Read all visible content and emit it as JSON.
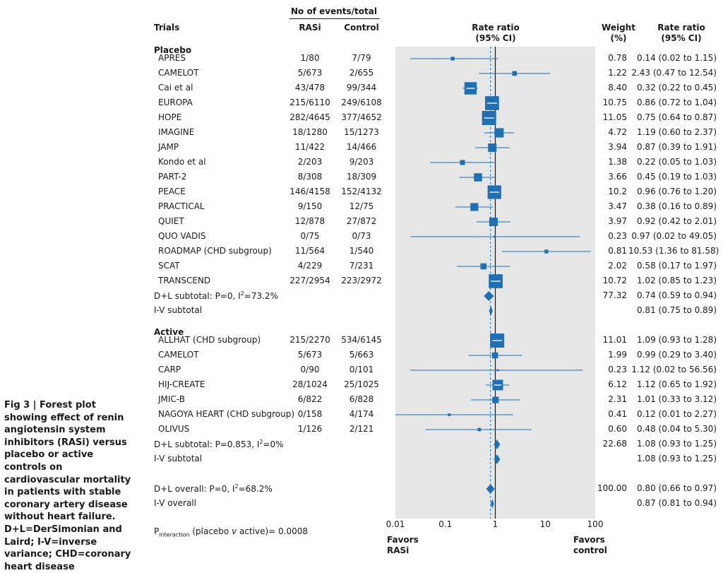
{
  "caption": "Fig 3 | Forest plot showing effect of renin angiotensin system inhibitors (RASi) versus placebo or active controls on cardiovascular mortality in patients with stable coronary artery disease without heart failure. D+L=DerSimonian and Laird; I-V=inverse variance; CHD=coronary heart disease",
  "headers": {
    "events_group": "No of events/total",
    "trials": "Trials",
    "rasi": "RASi",
    "control": "Control",
    "rate_ratio_plot_1": "Rate ratio",
    "rate_ratio_plot_2": "(95% CI)",
    "weight_1": "Weight",
    "weight_2": "(%)",
    "rate_ratio_col_1": "Rate ratio",
    "rate_ratio_col_2": "(95% CI)"
  },
  "axis_labels": {
    "favors_left_1": "Favors",
    "favors_left_2": "RASi",
    "favors_right_1": "Favors",
    "favors_right_2": "control"
  },
  "p_interaction": {
    "prefix": "P",
    "subscript": "interaction",
    "paren": "(placebo ",
    "v": "v",
    "rest": " active)= 0.0008"
  },
  "chart_data": {
    "type": "forest",
    "title": "Rate ratio (95% CI)",
    "xscale": "log",
    "xlim": [
      0.01,
      100
    ],
    "xticks": [
      0.01,
      0.1,
      1,
      10,
      100
    ],
    "xtick_labels": [
      "0.01",
      "0.1",
      "1",
      "10",
      "100"
    ],
    "reference_line": 1,
    "overall_dashed_line": 0.8,
    "accent_color": "#1f6fb2",
    "panel_color": "#e6e6e6",
    "groups": [
      {
        "name": "Placebo",
        "trials": [
          {
            "name": "APRES",
            "rasi": "1/80",
            "control": "7/79",
            "weight": "0.78",
            "ci_text": "0.14 (0.02 to 1.15)",
            "rr": 0.14,
            "lo": 0.02,
            "hi": 1.15,
            "w": 0.78
          },
          {
            "name": "CAMELOT",
            "rasi": "5/673",
            "control": "2/655",
            "weight": "1.22",
            "ci_text": "2.43 (0.47 to 12.54)",
            "rr": 2.43,
            "lo": 0.47,
            "hi": 12.54,
            "w": 1.22
          },
          {
            "name": "Cai et al",
            "rasi": "43/478",
            "control": "99/344",
            "weight": "8.40",
            "ci_text": "0.32 (0.22 to 0.45)",
            "rr": 0.32,
            "lo": 0.22,
            "hi": 0.45,
            "w": 8.4
          },
          {
            "name": "EUROPA",
            "rasi": "215/6110",
            "control": "249/6108",
            "weight": "10.75",
            "ci_text": "0.86 (0.72 to 1.04)",
            "rr": 0.86,
            "lo": 0.72,
            "hi": 1.04,
            "w": 10.75
          },
          {
            "name": "HOPE",
            "rasi": "282/4645",
            "control": "377/4652",
            "weight": "11.05",
            "ci_text": "0.75 (0.64 to 0.87)",
            "rr": 0.75,
            "lo": 0.64,
            "hi": 0.87,
            "w": 11.05
          },
          {
            "name": "IMAGINE",
            "rasi": "18/1280",
            "control": "15/1273",
            "weight": "4.72",
            "ci_text": "1.19 (0.60 to 2.37)",
            "rr": 1.19,
            "lo": 0.6,
            "hi": 2.37,
            "w": 4.72
          },
          {
            "name": "JAMP",
            "rasi": "11/422",
            "control": "14/466",
            "weight": "3.94",
            "ci_text": "0.87 (0.39 to 1.91)",
            "rr": 0.87,
            "lo": 0.39,
            "hi": 1.91,
            "w": 3.94
          },
          {
            "name": "Kondo et al",
            "rasi": "2/203",
            "control": "9/203",
            "weight": "1.38",
            "ci_text": "0.22 (0.05 to 1.03)",
            "rr": 0.22,
            "lo": 0.05,
            "hi": 1.03,
            "w": 1.38
          },
          {
            "name": "PART-2",
            "rasi": "8/308",
            "control": "18/309",
            "weight": "3.66",
            "ci_text": "0.45 (0.19 to 1.03)",
            "rr": 0.45,
            "lo": 0.19,
            "hi": 1.03,
            "w": 3.66
          },
          {
            "name": "PEACE",
            "rasi": "146/4158",
            "control": "152/4132",
            "weight": "10.2",
            "ci_text": "0.96 (0.76 to 1.20)",
            "rr": 0.96,
            "lo": 0.76,
            "hi": 1.2,
            "w": 10.2
          },
          {
            "name": "PRACTICAL",
            "rasi": "9/150",
            "control": "12/75",
            "weight": "3.47",
            "ci_text": "0.38 (0.16 to 0.89)",
            "rr": 0.38,
            "lo": 0.16,
            "hi": 0.89,
            "w": 3.47
          },
          {
            "name": "QUIET",
            "rasi": "12/878",
            "control": "27/872",
            "weight": "3.97",
            "ci_text": "0.92 (0.42 to 2.01)",
            "rr": 0.92,
            "lo": 0.42,
            "hi": 2.01,
            "w": 3.97
          },
          {
            "name": "QUO VADIS",
            "rasi": "0/75",
            "control": "0/73",
            "weight": "0.23",
            "ci_text": "0.97 (0.02 to 49.05)",
            "rr": 0.97,
            "lo": 0.02,
            "hi": 49.05,
            "w": 0.23
          },
          {
            "name": "ROADMAP (CHD subgroup)",
            "rasi": "11/564",
            "control": "1/540",
            "weight": "0.81",
            "ci_text": "10.53 (1.36 to 81.58)",
            "rr": 10.53,
            "lo": 1.36,
            "hi": 81.58,
            "w": 0.81
          },
          {
            "name": "SCAT",
            "rasi": "4/229",
            "control": "7/231",
            "weight": "2.02",
            "ci_text": "0.58 (0.17 to 1.97)",
            "rr": 0.58,
            "lo": 0.17,
            "hi": 1.97,
            "w": 2.02
          },
          {
            "name": "TRANSCEND",
            "rasi": "227/2954",
            "control": "223/2972",
            "weight": "10.72",
            "ci_text": "1.02 (0.85 to 1.23)",
            "rr": 1.02,
            "lo": 0.85,
            "hi": 1.23,
            "w": 10.72
          }
        ],
        "subtotals": [
          {
            "label_main": "D+L subtotal: P=0, I",
            "label_sup": "2",
            "label_tail": "=73.2%",
            "weight": "77.32",
            "ci_text": "0.74 (0.59 to 0.94)",
            "rr": 0.74,
            "lo": 0.59,
            "hi": 0.94
          },
          {
            "label_main": "I-V subtotal",
            "label_sup": "",
            "label_tail": "",
            "weight": "",
            "ci_text": "0.81 (0.75 to 0.89)",
            "rr": 0.81,
            "lo": 0.75,
            "hi": 0.89
          }
        ]
      },
      {
        "name": "Active",
        "trials": [
          {
            "name": "ALLHAT (CHD subgroup)",
            "rasi": "215/2270",
            "control": "534/6145",
            "weight": "11.01",
            "ci_text": "1.09 (0.93 to 1.28)",
            "rr": 1.09,
            "lo": 0.93,
            "hi": 1.28,
            "w": 11.01
          },
          {
            "name": "CAMELOT",
            "rasi": "5/673",
            "control": "5/663",
            "weight": "1.99",
            "ci_text": "0.99 (0.29 to 3.40)",
            "rr": 0.99,
            "lo": 0.29,
            "hi": 3.4,
            "w": 1.99
          },
          {
            "name": "CARP",
            "rasi": "0/90",
            "control": "0/101",
            "weight": "0.23",
            "ci_text": "1.12 (0.02 to 56.56)",
            "rr": 1.12,
            "lo": 0.02,
            "hi": 56.56,
            "w": 0.23
          },
          {
            "name": "HIJ-CREATE",
            "rasi": "28/1024",
            "control": "25/1025",
            "weight": "6.12",
            "ci_text": "1.12 (0.65 to 1.92)",
            "rr": 1.12,
            "lo": 0.65,
            "hi": 1.92,
            "w": 6.12
          },
          {
            "name": "JMIC-B",
            "rasi": "6/822",
            "control": "6/828",
            "weight": "2.31",
            "ci_text": "1.01 (0.33 to 3.12)",
            "rr": 1.01,
            "lo": 0.33,
            "hi": 3.12,
            "w": 2.31
          },
          {
            "name": "NAGOYA HEART (CHD subgroup)",
            "rasi": "0/158",
            "control": "4/174",
            "weight": "0.41",
            "ci_text": "0.12 (0.01 to 2.27)",
            "rr": 0.12,
            "lo": 0.01,
            "hi": 2.27,
            "w": 0.41
          },
          {
            "name": "OLIVUS",
            "rasi": "1/126",
            "control": "2/121",
            "weight": "0.60",
            "ci_text": "0.48 (0.04 to 5.30)",
            "rr": 0.48,
            "lo": 0.04,
            "hi": 5.3,
            "w": 0.6
          }
        ],
        "subtotals": [
          {
            "label_main": "D+L subtotal: P=0.853, I",
            "label_sup": "2",
            "label_tail": "=0%",
            "weight": "22.68",
            "ci_text": "1.08 (0.93 to 1.25)",
            "rr": 1.08,
            "lo": 0.93,
            "hi": 1.25
          },
          {
            "label_main": "I-V subtotal",
            "label_sup": "",
            "label_tail": "",
            "weight": "",
            "ci_text": "1.08 (0.93 to 1.25)",
            "rr": 1.08,
            "lo": 0.93,
            "hi": 1.25
          }
        ]
      }
    ],
    "overall": [
      {
        "label_main": "D+L overall: P=0, I",
        "label_sup": "2",
        "label_tail": "=68.2%",
        "weight": "100.00",
        "ci_text": "0.80 (0.66 to 0.97)",
        "rr": 0.8,
        "lo": 0.66,
        "hi": 0.97
      },
      {
        "label_main": "I-V overall",
        "label_sup": "",
        "label_tail": "",
        "weight": "",
        "ci_text": "0.87 (0.81 to 0.94)",
        "rr": 0.87,
        "lo": 0.81,
        "hi": 0.94
      }
    ]
  }
}
